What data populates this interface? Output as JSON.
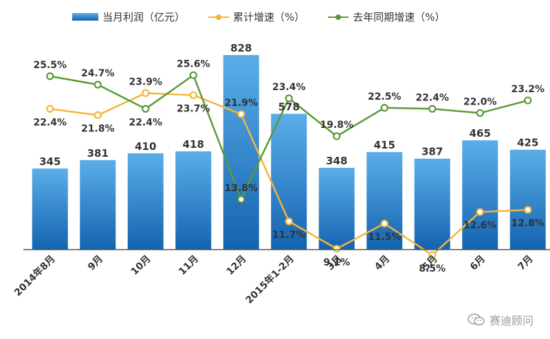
{
  "chart_data": {
    "type": "bar",
    "title": "",
    "xlabel": "",
    "ylabel": "",
    "categories": [
      "2014年8月",
      "9月",
      "10月",
      "11月",
      "12月",
      "2015年1-2月",
      "3月",
      "4月",
      "5月",
      "6月",
      "7月"
    ],
    "series": [
      {
        "name": "当月利润（亿元）",
        "type": "bar",
        "axis": "left",
        "values": [
          345,
          381,
          410,
          418,
          828,
          578,
          348,
          415,
          387,
          465,
          425
        ],
        "labels": [
          "345",
          "381",
          "410",
          "418",
          "828",
          "578",
          "348",
          "415",
          "387",
          "465",
          "425"
        ]
      },
      {
        "name": "累计增速（%）",
        "type": "line",
        "axis": "right",
        "values": [
          22.4,
          21.8,
          23.9,
          23.7,
          21.9,
          11.7,
          9.1,
          11.5,
          8.5,
          12.6,
          12.8
        ],
        "labels": [
          "22.4%",
          "21.8%",
          "23.9%",
          "23.7%",
          "21.9%",
          "11.7%",
          "9.1%",
          "11.5%",
          "8.5%",
          "12.6%",
          "12.8%"
        ]
      },
      {
        "name": "去年同期增速（%）",
        "type": "line",
        "axis": "right",
        "values": [
          25.5,
          24.7,
          22.4,
          25.6,
          13.8,
          23.4,
          19.8,
          22.5,
          22.4,
          22.0,
          23.2
        ],
        "labels": [
          "25.5%",
          "24.7%",
          "22.4%",
          "25.6%",
          "13.8%",
          "23.4%",
          "19.8%",
          "22.5%",
          "22.4%",
          "22.0%",
          "23.2%"
        ]
      }
    ],
    "ylim_left": [
      0,
      850
    ],
    "ylim_right": [
      0,
      30
    ],
    "grid": false,
    "legend_position": "top"
  },
  "colors": {
    "bar_top": "#5aaee8",
    "bar_bottom": "#1463b0",
    "cumulative_line": "#f4b43b",
    "last_year_line": "#5a9a35",
    "axis": "#555555",
    "label": "#333333"
  },
  "watermark": {
    "text": "赛迪顾问",
    "icon": "wechat-icon"
  }
}
